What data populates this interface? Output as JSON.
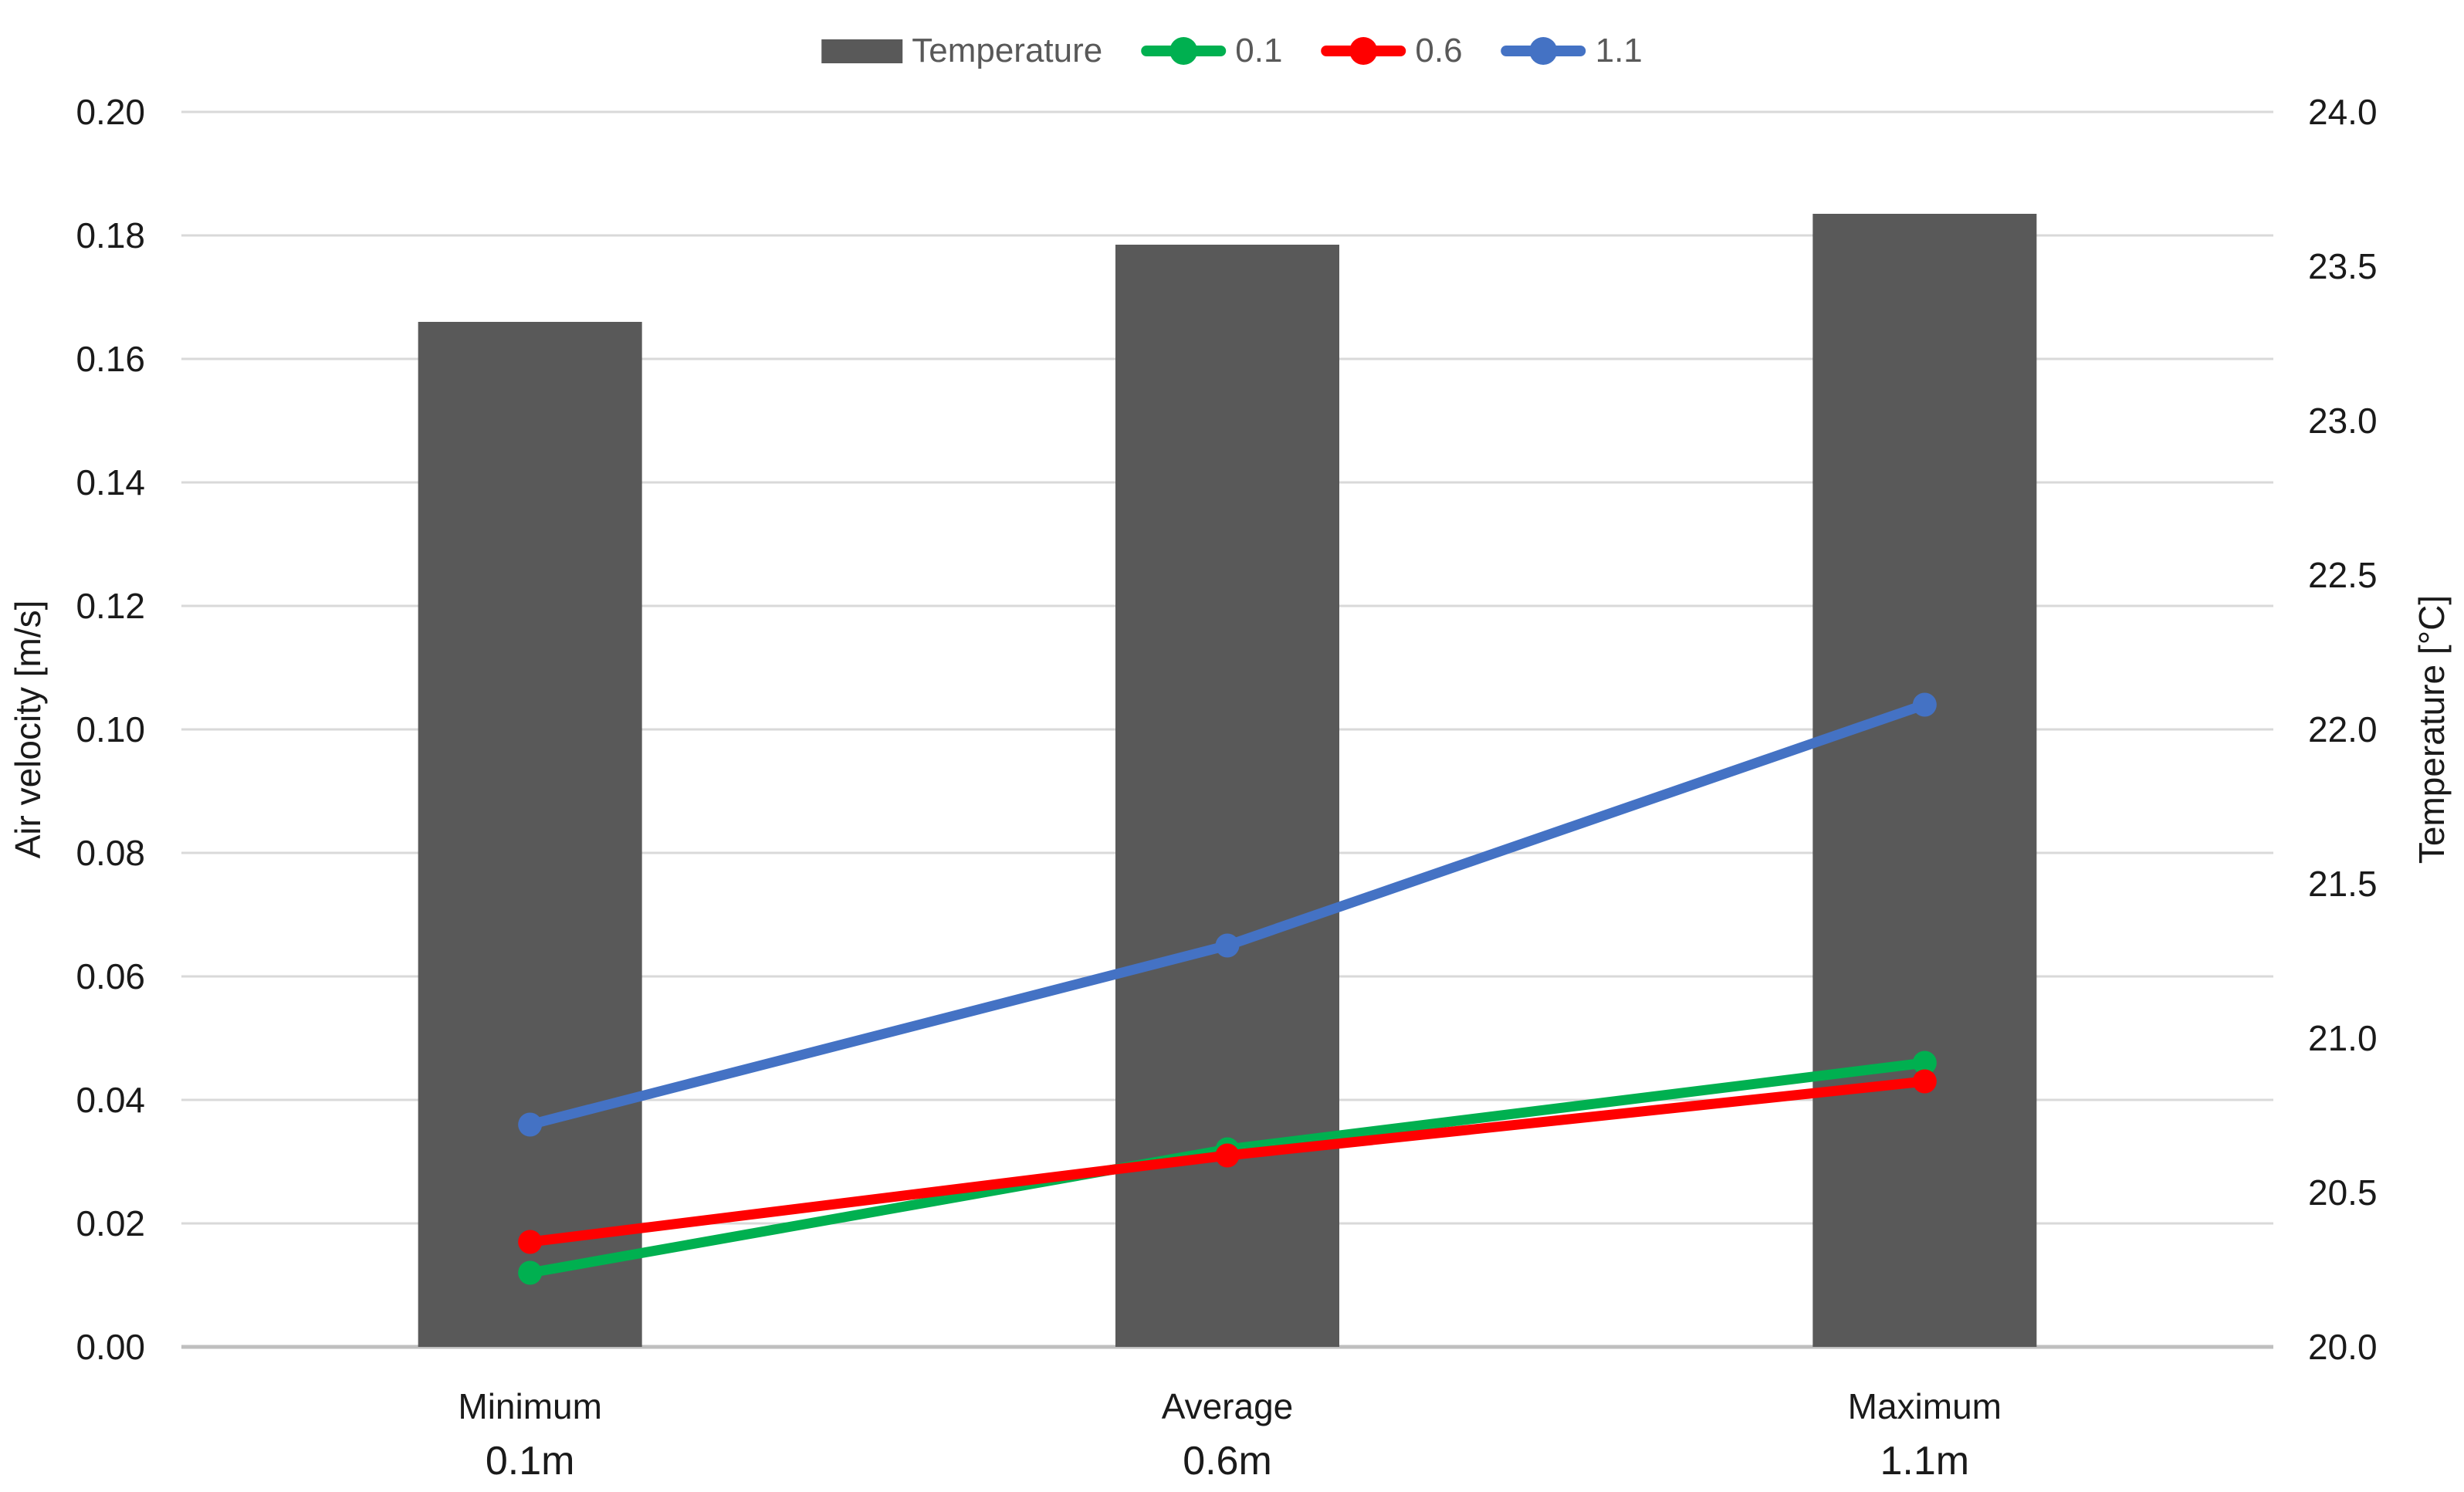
{
  "chart_data": {
    "type": "combo-bar-line",
    "title": "",
    "categories": [
      {
        "label": "Minimum",
        "sublabel": "0.1m"
      },
      {
        "label": "Average",
        "sublabel": "0.6m"
      },
      {
        "label": "Maximum",
        "sublabel": "1.1m"
      }
    ],
    "bar_series": {
      "name": "Temperature",
      "axis": "right",
      "color": "#595959",
      "values": [
        23.32,
        23.57,
        23.67
      ]
    },
    "line_series": [
      {
        "name": "0.1",
        "axis": "left",
        "color": "#00B050",
        "values": [
          0.012,
          0.032,
          0.046
        ]
      },
      {
        "name": "0.6",
        "axis": "left",
        "color": "#FF0000",
        "values": [
          0.017,
          0.031,
          0.043
        ]
      },
      {
        "name": "1.1",
        "axis": "left",
        "color": "#4472C4",
        "values": [
          0.036,
          0.065,
          0.104
        ]
      }
    ],
    "left_axis": {
      "title": "Air velocity [m/s]",
      "min": 0.0,
      "max": 0.2,
      "step": 0.02,
      "tick_labels": [
        "0.00",
        "0.02",
        "0.04",
        "0.06",
        "0.08",
        "0.10",
        "0.12",
        "0.14",
        "0.16",
        "0.18",
        "0.20"
      ]
    },
    "right_axis": {
      "title": "Temperature [°C]",
      "min": 20.0,
      "max": 24.0,
      "step": 0.5,
      "tick_labels": [
        "20.0",
        "20.5",
        "21.0",
        "21.5",
        "22.0",
        "22.5",
        "23.0",
        "23.5",
        "24.0"
      ]
    },
    "legend": {
      "position": "top",
      "items": [
        "Temperature",
        "0.1",
        "0.6",
        "1.1"
      ]
    },
    "style": {
      "gridline_color": "#D9D9D9",
      "axisline_color": "#BFBFBF",
      "tick_label_color": "#1a1a1a",
      "legend_text_color": "#595959",
      "background": "#FFFFFF"
    }
  }
}
